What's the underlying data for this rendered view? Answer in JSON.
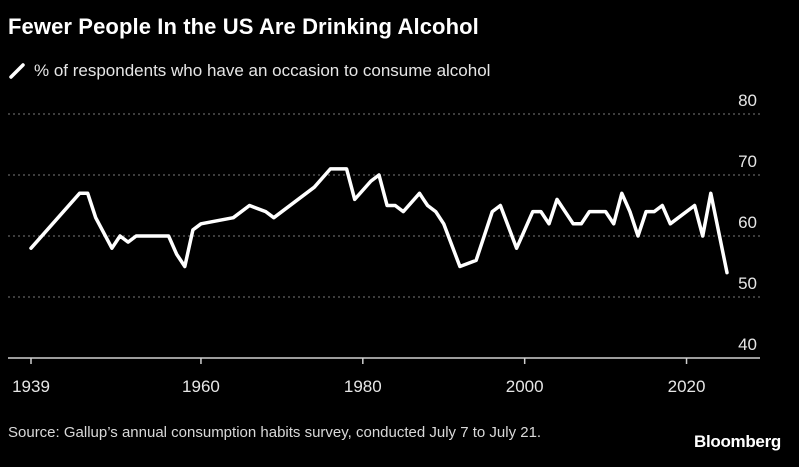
{
  "title": "Fewer People In the US Are Drinking Alcohol",
  "source": "Source: Gallup’s annual consumption habits survey, conducted July 7 to July 21.",
  "brand": "Bloomberg",
  "colors": {
    "background": "#000000",
    "line": "#ffffff",
    "grid": "#7a7a7a",
    "text": "#ffffff"
  },
  "chart_data": {
    "type": "line",
    "title": "Fewer People In the US Are Drinking Alcohol",
    "xlabel": "",
    "ylabel": "",
    "xlim": [
      1939,
      2025
    ],
    "ylim": [
      40,
      80
    ],
    "x_ticks": [
      1939,
      1960,
      1980,
      2000,
      2020
    ],
    "y_ticks": [
      40,
      50,
      60,
      70,
      80
    ],
    "grid": true,
    "legend_position": "top-left",
    "series": [
      {
        "name": "% of respondents who have an occasion to consume alcohol",
        "color": "#ffffff",
        "x": [
          1939,
          1945,
          1946,
          1947,
          1949,
          1950,
          1951,
          1952,
          1956,
          1957,
          1958,
          1959,
          1960,
          1964,
          1966,
          1968,
          1969,
          1974,
          1976,
          1977,
          1978,
          1979,
          1981,
          1982,
          1983,
          1984,
          1985,
          1987,
          1987.5,
          1988,
          1989,
          1989.5,
          1990,
          1992,
          1994,
          1996,
          1997,
          1999,
          2000,
          2001,
          2002,
          2003,
          2004,
          2006,
          2007,
          2008,
          2010,
          2011,
          2012,
          2013,
          2014,
          2015,
          2016,
          2017,
          2018,
          2019,
          2021,
          2022,
          2023,
          2025
        ],
        "values": [
          58,
          67,
          67,
          63,
          58,
          60,
          59,
          60,
          60,
          57,
          55,
          61,
          62,
          63,
          65,
          64,
          63,
          68,
          71,
          71,
          71,
          66,
          69,
          70,
          65,
          65,
          64,
          67,
          66,
          65,
          64,
          63,
          62,
          55,
          56,
          64,
          65,
          58,
          61,
          64,
          64,
          62,
          66,
          62,
          62,
          64,
          64,
          62,
          67,
          64,
          60,
          64,
          64,
          65,
          62,
          63,
          65,
          60,
          67,
          54
        ]
      }
    ]
  }
}
